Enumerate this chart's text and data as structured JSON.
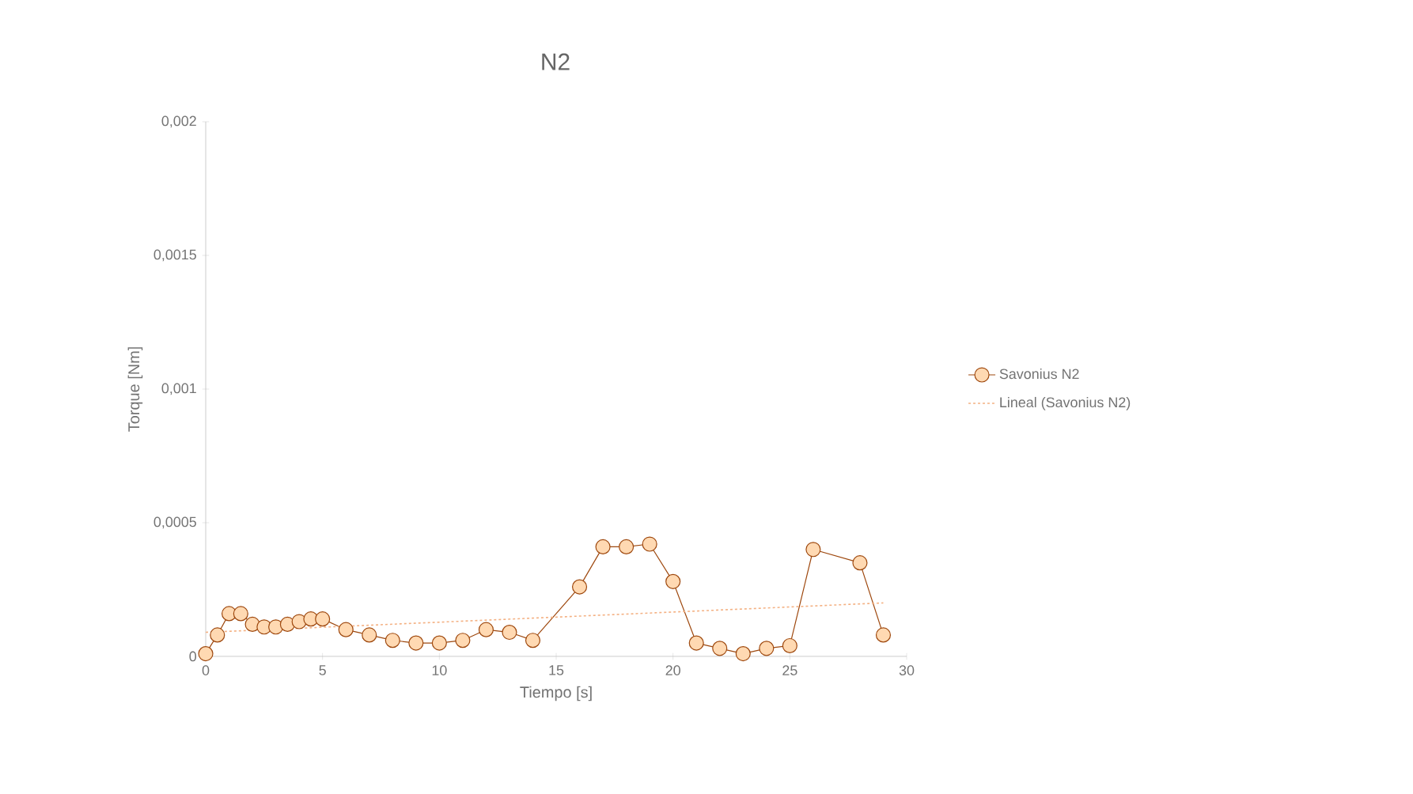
{
  "chart_data": {
    "type": "line",
    "title": "N2",
    "xlabel": "Tiempo [s]",
    "ylabel": "Torque [Nm]",
    "xlim": [
      0,
      30
    ],
    "xticks": [
      0,
      5,
      10,
      15,
      20,
      25,
      30
    ],
    "ylim": [
      0,
      0.002
    ],
    "yticks": [
      0,
      {
        "value": 0.0005,
        "label": "0,0005"
      },
      {
        "value": 0.001,
        "label": "0,001"
      },
      {
        "value": 0.0015,
        "label": "0,0015"
      },
      {
        "value": 0.002,
        "label": "0,002"
      }
    ],
    "grid": false,
    "legend": "right",
    "series": [
      {
        "name": "Savonius N2",
        "color": "#9e480e",
        "marker": "circle",
        "line_style": "solid",
        "x": [
          0,
          0.5,
          1,
          1.5,
          2,
          2.5,
          3,
          3.5,
          4,
          4.5,
          5,
          6,
          7,
          8,
          9,
          10,
          11,
          12,
          13,
          14,
          16,
          17,
          18,
          19,
          20,
          21,
          22,
          23,
          24,
          25,
          26,
          28,
          29
        ],
        "values": [
          1e-05,
          8e-05,
          0.00016,
          0.00016,
          0.00012,
          0.00011,
          0.00011,
          0.00012,
          0.00013,
          0.00014,
          0.00014,
          0.0001,
          8e-05,
          6e-05,
          5e-05,
          5e-05,
          6e-05,
          0.0001,
          9e-05,
          6e-05,
          0.00026,
          0.00041,
          0.00041,
          0.00042,
          0.00028,
          5e-05,
          3e-05,
          1e-05,
          3e-05,
          4e-05,
          0.0004,
          0.00035,
          8e-05
        ]
      },
      {
        "name": "Lineal (Savonius N2)",
        "color": "#f4b183",
        "marker": "none",
        "line_style": "dotted",
        "x": [
          0,
          29
        ],
        "values": [
          9e-05,
          0.0002
        ]
      }
    ]
  }
}
